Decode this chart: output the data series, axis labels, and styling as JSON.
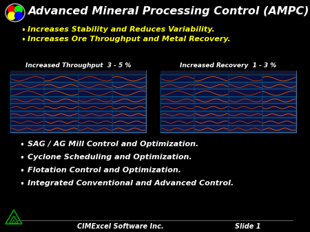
{
  "bg_color": "#000000",
  "title": "Advanced Mineral Processing Control (AMPC)",
  "title_color": "#ffffff",
  "bullet_color": "#ffff00",
  "bullets_top": [
    "Increases Stability and Reduces Variability.",
    "Increases Ore Throughput and Metal Recovery."
  ],
  "chart_label_left": "Increased Throughput  3 - 5 %",
  "chart_label_right": "Increased Recovery  1 - 3 %",
  "chart_label_color": "#ffffff",
  "bullets_bottom": [
    "SAG / AG Mill Control and Optimization.",
    "Cyclone Scheduling and Optimization.",
    "Flotation Control and Optimization.",
    "Integrated Conventional and Advanced Control."
  ],
  "bullet_bottom_color": "#ffffff",
  "footer_left": "CIMExcel Software Inc.",
  "footer_right": "Slide 1",
  "footer_color": "#ffffff",
  "logo_colors": [
    "#ff0000",
    "#00ee00",
    "#ffff00",
    "#0000ff"
  ],
  "triangle_color": "#00aa00",
  "screen_bg": "#0a0f2a",
  "screen_header": "#111133",
  "row_color_a": "#0a1040",
  "row_color_b": "#12184a",
  "row_line_color": "#00aacc",
  "wave_color": "#cc4400",
  "wave_color2": "#ff6600"
}
